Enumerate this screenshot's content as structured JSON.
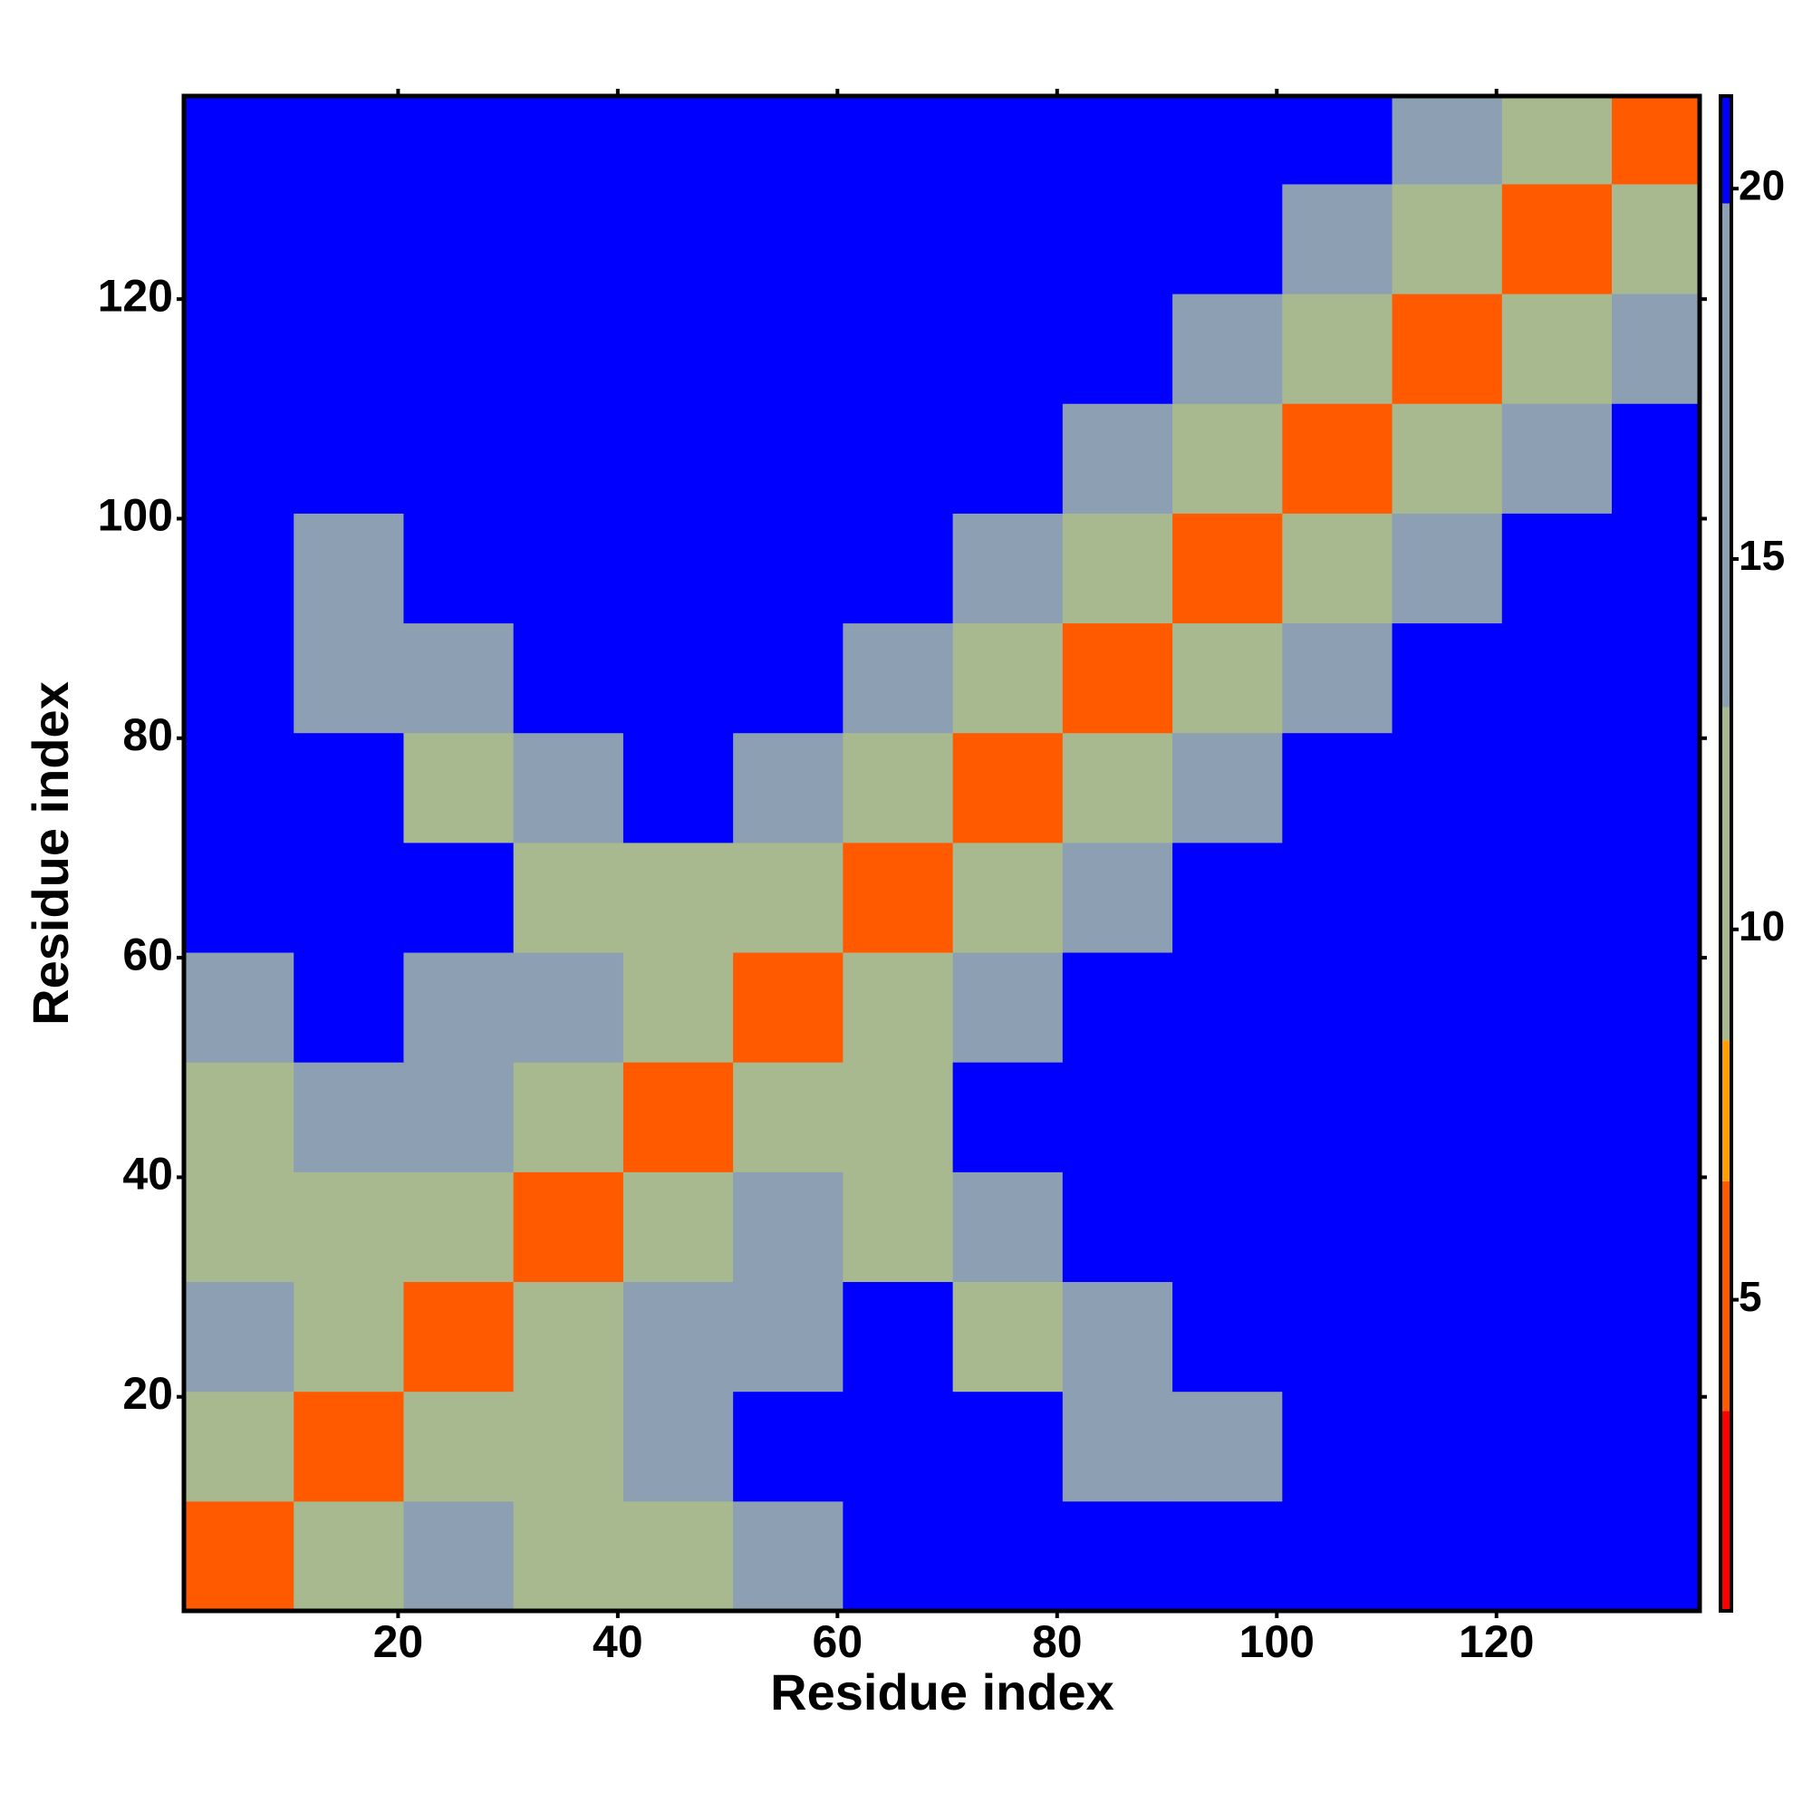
{
  "chart_data": {
    "type": "heatmap",
    "xlabel": "Residue index",
    "ylabel": "Residue index",
    "xlim": [
      0.5,
      138.5
    ],
    "ylim": [
      0.5,
      138.5
    ],
    "xticks": [
      20,
      40,
      60,
      80,
      100,
      120
    ],
    "yticks": [
      20,
      40,
      60,
      80,
      100,
      120
    ],
    "xbins": [
      0.5,
      10.5,
      20.5,
      30.5,
      40.5,
      50.5,
      60.5,
      70.5,
      80.5,
      90.5,
      100.5,
      110.5,
      120.5,
      130.5,
      138.5
    ],
    "ybins": [
      0.5,
      10.5,
      20.5,
      30.5,
      40.5,
      50.5,
      60.5,
      70.5,
      80.5,
      90.5,
      100.5,
      110.5,
      120.5,
      130.5,
      138.5
    ],
    "z": [
      [
        5,
        12,
        19,
        13,
        11,
        17,
        21,
        21,
        21,
        21,
        21,
        21,
        21,
        21
      ],
      [
        12,
        5,
        12,
        12,
        17,
        21,
        21,
        21,
        15,
        16,
        21,
        21,
        21,
        21
      ],
      [
        19,
        12,
        5,
        12,
        19,
        16,
        21,
        13,
        15,
        21,
        21,
        21,
        21,
        21
      ],
      [
        13,
        12,
        12,
        5,
        12,
        19,
        11,
        16,
        21,
        21,
        21,
        21,
        21,
        21
      ],
      [
        11,
        17,
        19,
        12,
        5,
        10,
        13,
        21,
        21,
        21,
        21,
        21,
        21,
        21
      ],
      [
        17,
        21,
        16,
        19,
        10,
        5,
        12,
        19,
        21,
        21,
        21,
        21,
        21,
        21
      ],
      [
        21,
        21,
        21,
        11,
        13,
        12,
        5,
        12,
        19,
        21,
        21,
        21,
        21,
        21
      ],
      [
        21,
        21,
        13,
        16,
        21,
        19,
        12,
        5,
        12,
        19,
        21,
        21,
        21,
        21
      ],
      [
        21,
        15,
        15,
        21,
        21,
        21,
        19,
        12,
        5,
        12,
        19,
        21,
        21,
        21
      ],
      [
        21,
        16,
        21,
        21,
        21,
        21,
        21,
        19,
        12,
        5,
        12,
        19,
        21,
        21
      ],
      [
        21,
        21,
        21,
        21,
        21,
        21,
        21,
        21,
        19,
        12,
        5,
        12,
        19,
        21
      ],
      [
        21,
        21,
        21,
        21,
        21,
        21,
        21,
        21,
        21,
        19,
        12,
        5,
        12,
        19
      ],
      [
        21,
        21,
        21,
        21,
        21,
        21,
        21,
        21,
        21,
        21,
        19,
        12,
        5,
        12
      ],
      [
        21,
        21,
        21,
        21,
        21,
        21,
        21,
        21,
        21,
        21,
        21,
        19,
        12,
        5
      ]
    ],
    "clim": [
      0.8,
      21.25
    ],
    "cticks": [
      5,
      10,
      15,
      20
    ],
    "colorbands": [
      {
        "from": 0.8,
        "to": 3.5,
        "color": "#ff0000"
      },
      {
        "from": 3.5,
        "to": 6.6,
        "color": "#ff5a00"
      },
      {
        "from": 6.6,
        "to": 8.5,
        "color": "#ffa000"
      },
      {
        "from": 8.5,
        "to": 13,
        "color": "#a9b98f"
      },
      {
        "from": 13,
        "to": 19.8,
        "color": "#8c9fb3"
      },
      {
        "from": 19.8,
        "to": 21.25,
        "color": "#0000ff"
      }
    ]
  }
}
